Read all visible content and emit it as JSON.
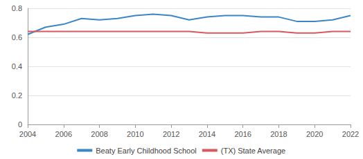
{
  "chart_data": {
    "type": "line",
    "x": [
      2004,
      2005,
      2006,
      2007,
      2008,
      2009,
      2010,
      2011,
      2012,
      2013,
      2014,
      2015,
      2016,
      2017,
      2018,
      2019,
      2020,
      2021,
      2022
    ],
    "series": [
      {
        "name": "Beaty Early Childhood School",
        "color": "#3a86c8",
        "values": [
          0.62,
          0.67,
          0.69,
          0.73,
          0.72,
          0.73,
          0.75,
          0.76,
          0.75,
          0.72,
          0.74,
          0.75,
          0.75,
          0.74,
          0.74,
          0.71,
          0.71,
          0.72,
          0.75
        ]
      },
      {
        "name": "(TX) State Average",
        "color": "#d9585f",
        "values": [
          0.64,
          0.64,
          0.64,
          0.64,
          0.64,
          0.64,
          0.64,
          0.64,
          0.64,
          0.64,
          0.63,
          0.63,
          0.63,
          0.64,
          0.64,
          0.63,
          0.63,
          0.64,
          0.64
        ]
      }
    ],
    "xlim": [
      2004,
      2022
    ],
    "xticks": [
      2004,
      2006,
      2008,
      2010,
      2012,
      2014,
      2016,
      2018,
      2020,
      2022
    ],
    "ylim": [
      0,
      0.8
    ],
    "yticks": [
      0,
      0.2,
      0.4,
      0.6,
      0.8
    ],
    "grid": true,
    "legend": "bottom"
  }
}
